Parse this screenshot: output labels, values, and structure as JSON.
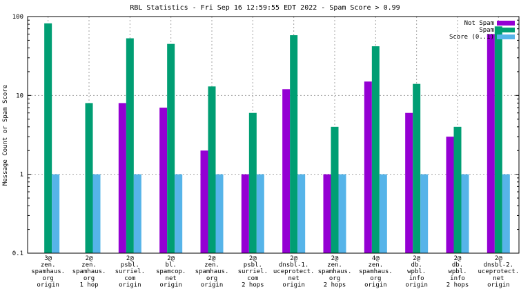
{
  "chart_data": {
    "type": "bar",
    "title": "RBL Statistics - Fri Sep 16 12:59:55 EDT 2022 - Spam Score > 0.99",
    "xlabel": "",
    "ylabel": "Message Count or Spam Score",
    "yscale": "log",
    "ylim": [
      0.1,
      100
    ],
    "yticks": [
      {
        "value": 0.1,
        "label": "0.1"
      },
      {
        "value": 1,
        "label": "1"
      },
      {
        "value": 10,
        "label": "10"
      },
      {
        "value": 100,
        "label": "100"
      }
    ],
    "grid": true,
    "legend_position": "top-right",
    "categories": [
      [
        "3@",
        "zen.",
        "spamhaus.",
        "org",
        "origin"
      ],
      [
        "2@",
        "zen.",
        "spamhaus.",
        "org",
        "1 hop"
      ],
      [
        "2@",
        "psbl.",
        "surriel.",
        "com",
        "origin"
      ],
      [
        "2@",
        "bl.",
        "spamcop.",
        "net",
        "origin"
      ],
      [
        "2@",
        "zen.",
        "spamhaus.",
        "org",
        "origin"
      ],
      [
        "2@",
        "psbl.",
        "surriel.",
        "com",
        "2 hops"
      ],
      [
        "2@",
        "dnsbl-1.",
        "uceprotect.",
        "net",
        "origin"
      ],
      [
        "2@",
        "zen.",
        "spamhaus.",
        "org",
        "2 hops"
      ],
      [
        "4@",
        "zen.",
        "spamhaus.",
        "org",
        "origin"
      ],
      [
        "2@",
        "db.",
        "wpbl.",
        "info",
        "origin"
      ],
      [
        "2@",
        "db.",
        "wpbl.",
        "info",
        "2 hops"
      ],
      [
        "2@",
        "dnsbl-2.",
        "uceprotect.",
        "net",
        "origin"
      ]
    ],
    "series": [
      {
        "name": "Not Spam",
        "color": "#9400d3",
        "values": [
          null,
          null,
          8,
          7,
          2,
          1,
          12,
          1,
          15,
          6,
          3,
          60
        ]
      },
      {
        "name": "Spam",
        "color": "#009e73",
        "values": [
          82,
          8,
          53,
          45,
          13,
          6,
          58,
          4,
          42,
          14,
          4,
          75
        ]
      },
      {
        "name": "Score (0..1)",
        "color": "#56b4e9",
        "values": [
          1,
          1,
          1,
          1,
          1,
          1,
          1,
          1,
          1,
          1,
          1,
          1
        ]
      }
    ]
  }
}
